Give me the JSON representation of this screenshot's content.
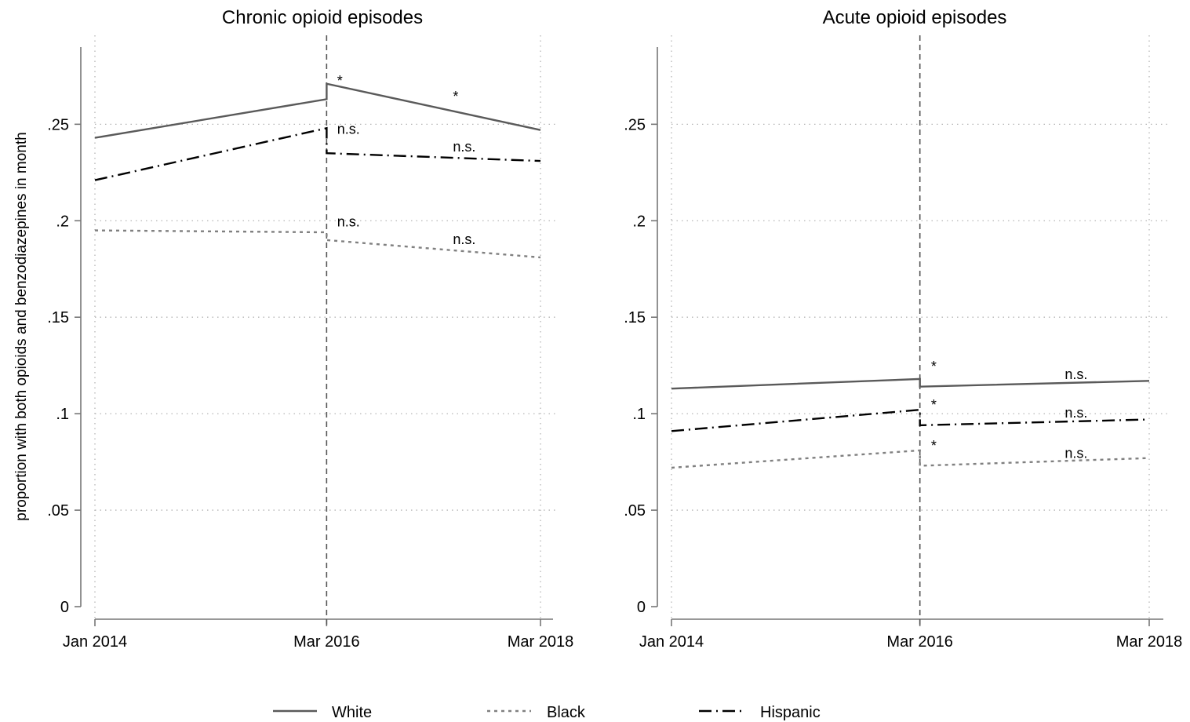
{
  "ylabel": "proportion with both opioids and benzodiazepines in month",
  "legend": {
    "position": "bottom",
    "items": [
      {
        "series": "White",
        "label": "White"
      },
      {
        "series": "Black",
        "label": "Black"
      },
      {
        "series": "Hispanic",
        "label": "Hispanic"
      }
    ]
  },
  "styles": {
    "White": {
      "color": "#5a5a5a",
      "dash": ""
    },
    "Black": {
      "color": "#808080",
      "dash": "4,5"
    },
    "Hispanic": {
      "color": "#000000",
      "dash": "16,6,2,6"
    }
  },
  "chart_data": [
    {
      "type": "line",
      "title": "Chronic opioid episodes",
      "ylabel": "proportion with both opioids and benzodiazepines in month",
      "ylim": [
        0,
        0.29
      ],
      "yticks": [
        0,
        0.05,
        0.1,
        0.15,
        0.2,
        0.25
      ],
      "ytick_labels": [
        "0",
        ".05",
        ".1",
        ".15",
        ".2",
        ".25"
      ],
      "xlim": [
        "2014-01",
        "2018-04"
      ],
      "xticks": [
        "2014-01",
        "2016-03",
        "2018-03"
      ],
      "xtick_labels": [
        "Jan 2014",
        "Mar 2016",
        "Mar 2018"
      ],
      "vline": "2016-03",
      "grid": true,
      "series": [
        {
          "name": "White",
          "x": [
            "2014-01",
            "2016-03",
            "2016-03",
            "2018-03"
          ],
          "y": [
            0.243,
            0.263,
            0.271,
            0.247
          ]
        },
        {
          "name": "Black",
          "x": [
            "2014-01",
            "2016-03",
            "2016-03",
            "2018-03"
          ],
          "y": [
            0.195,
            0.194,
            0.19,
            0.181
          ]
        },
        {
          "name": "Hispanic",
          "x": [
            "2014-01",
            "2016-03",
            "2016-03",
            "2018-03"
          ],
          "y": [
            0.221,
            0.248,
            0.235,
            0.231
          ]
        }
      ],
      "annotations": [
        {
          "text": "*",
          "x": "2016-04",
          "y": 0.27
        },
        {
          "text": "*",
          "x": "2017-05",
          "y": 0.262
        },
        {
          "text": "n.s.",
          "x": "2016-04",
          "y": 0.245
        },
        {
          "text": "n.s.",
          "x": "2017-05",
          "y": 0.236
        },
        {
          "text": "n.s.",
          "x": "2016-04",
          "y": 0.197
        },
        {
          "text": "n.s.",
          "x": "2017-05",
          "y": 0.188
        }
      ]
    },
    {
      "type": "line",
      "title": "Acute opioid episodes",
      "ylim": [
        0,
        0.29
      ],
      "yticks": [
        0,
        0.05,
        0.1,
        0.15,
        0.2,
        0.25
      ],
      "ytick_labels": [
        "0",
        ".05",
        ".1",
        ".15",
        ".2",
        ".25"
      ],
      "xlim": [
        "2014-01",
        "2018-04"
      ],
      "xticks": [
        "2014-01",
        "2016-03",
        "2018-03"
      ],
      "xtick_labels": [
        "Jan 2014",
        "Mar 2016",
        "Mar 2018"
      ],
      "vline": "2016-03",
      "grid": true,
      "series": [
        {
          "name": "White",
          "x": [
            "2014-01",
            "2016-03",
            "2016-03",
            "2018-03"
          ],
          "y": [
            0.113,
            0.118,
            0.114,
            0.117
          ]
        },
        {
          "name": "Black",
          "x": [
            "2014-01",
            "2016-03",
            "2016-03",
            "2018-03"
          ],
          "y": [
            0.072,
            0.081,
            0.073,
            0.077
          ]
        },
        {
          "name": "Hispanic",
          "x": [
            "2014-01",
            "2016-03",
            "2016-03",
            "2018-03"
          ],
          "y": [
            0.091,
            0.102,
            0.094,
            0.097
          ]
        }
      ],
      "annotations": [
        {
          "text": "*",
          "x": "2016-04",
          "y": 0.122
        },
        {
          "text": "n.s.",
          "x": "2017-06",
          "y": 0.118
        },
        {
          "text": "*",
          "x": "2016-04",
          "y": 0.102
        },
        {
          "text": "n.s.",
          "x": "2017-06",
          "y": 0.098
        },
        {
          "text": "*",
          "x": "2016-04",
          "y": 0.081
        },
        {
          "text": "n.s.",
          "x": "2017-06",
          "y": 0.077
        }
      ]
    }
  ]
}
